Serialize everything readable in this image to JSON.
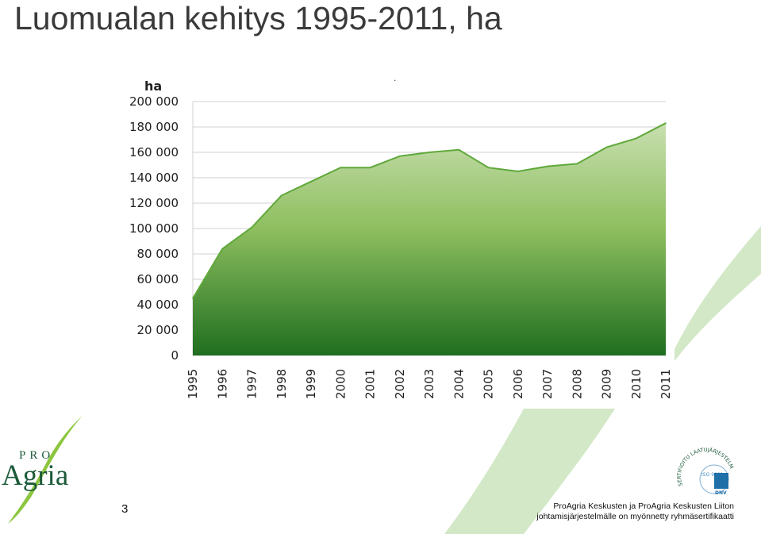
{
  "page": {
    "title": "Luomualan kehitys 1995-2011, ha",
    "page_number": "3",
    "footer_line1": "ProAgria Keskusten ja ProAgria Keskusten Liiton",
    "footer_line2": "johtamisjärjestelmälle on myönnetty ryhmäsertifikaatti",
    "logo_pro": "PRO",
    "logo_agria": "Agria",
    "seal_text": "SERTIFIOITU LAATUJÄRJESTELMÄ",
    "seal_iso": "ISO 9001",
    "seal_dnv": "DNV",
    "colors": {
      "area_top": "#c8dfb0",
      "area_mid": "#8fbf60",
      "area_bottom": "#1f6e1f",
      "line": "#5fa83a",
      "grid": "#d0d0d0",
      "brand": "#1d5a3a",
      "deco": "#d3e8c6"
    }
  },
  "chart_data": {
    "type": "area",
    "title": "",
    "xlabel": "",
    "ylabel": "ha",
    "ylim": [
      0,
      200000
    ],
    "grid": true,
    "legend": "none",
    "y_tick_labels": [
      "0",
      "20 000",
      "40 000",
      "60 000",
      "80 000",
      "100 000",
      "120 000",
      "140 000",
      "160 000",
      "180 000",
      "200 000"
    ],
    "y_ticks": [
      0,
      20000,
      40000,
      60000,
      80000,
      100000,
      120000,
      140000,
      160000,
      180000,
      200000
    ],
    "categories": [
      "1995",
      "1996",
      "1997",
      "1998",
      "1999",
      "2000",
      "2001",
      "2002",
      "2003",
      "2004",
      "2005",
      "2006",
      "2007",
      "2008",
      "2009",
      "2010",
      "2011"
    ],
    "series": [
      {
        "values": [
          45000,
          84000,
          101000,
          126000,
          137000,
          148000,
          148000,
          157000,
          160000,
          162000,
          148000,
          145000,
          149000,
          151000,
          164000,
          171000,
          183000
        ]
      }
    ]
  }
}
